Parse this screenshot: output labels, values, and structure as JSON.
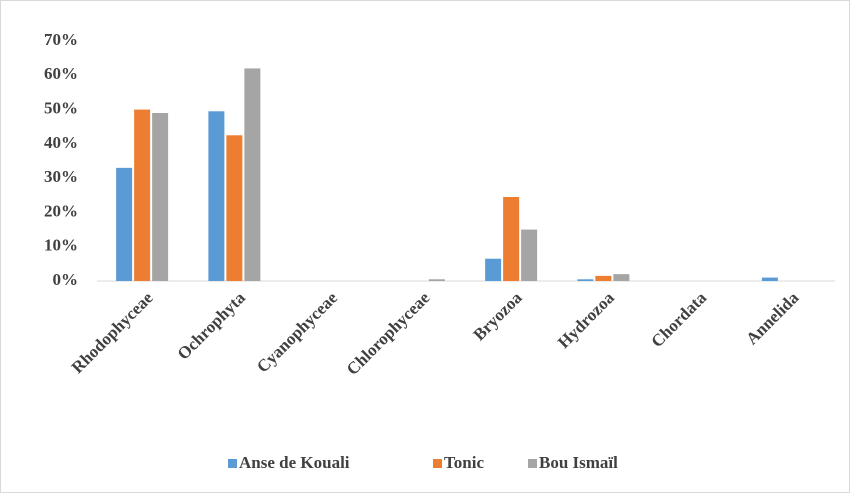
{
  "chart_data": {
    "type": "bar",
    "categories": [
      "Rhodophyceae",
      "Ochrophyta",
      "Cyanophyceae",
      "Chlorophyceae",
      "Bryozoa",
      "Hydrozoa",
      "Chordata",
      "Annelida"
    ],
    "series": [
      {
        "name": "Anse de Kouali",
        "color": "#5b9bd5",
        "values": [
          33,
          49.5,
          0,
          0,
          6.5,
          0.5,
          0,
          1
        ]
      },
      {
        "name": "Tonic",
        "color": "#ed7d31",
        "values": [
          50,
          42.5,
          0,
          0,
          24.5,
          1.5,
          0,
          0
        ]
      },
      {
        "name": "Bou Ismaïl",
        "color": "#a5a5a5",
        "values": [
          49,
          62,
          0,
          0.5,
          15,
          2,
          0,
          0
        ]
      }
    ],
    "ylim": [
      0,
      70
    ],
    "yticks": [
      {
        "value": 0,
        "label": "0%"
      },
      {
        "value": 10,
        "label": "10%"
      },
      {
        "value": 20,
        "label": "20%"
      },
      {
        "value": 30,
        "label": "30%"
      },
      {
        "value": 40,
        "label": "40%"
      },
      {
        "value": 50,
        "label": "50%"
      },
      {
        "value": 60,
        "label": "60%"
      },
      {
        "value": 70,
        "label": "70%"
      }
    ],
    "grid": false,
    "legend": "bottom"
  }
}
